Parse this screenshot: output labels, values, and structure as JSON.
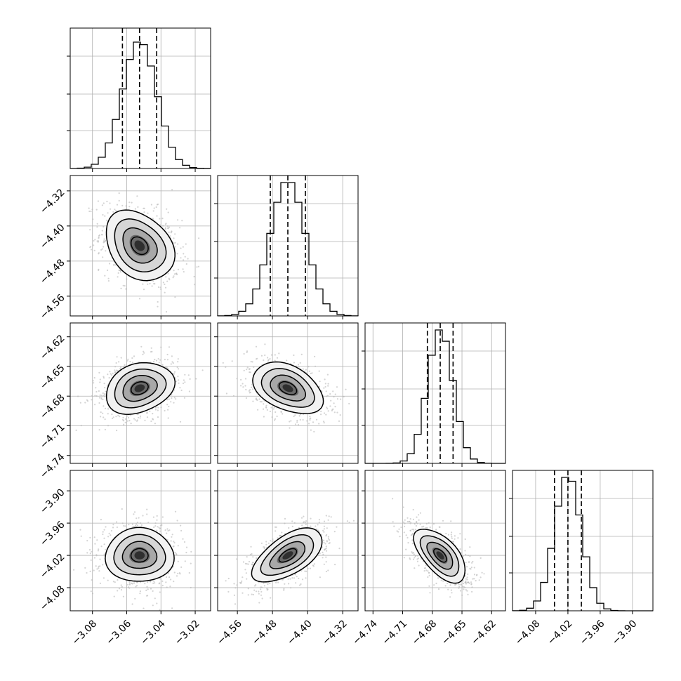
{
  "chart_data": {
    "type": "corner",
    "grid": true,
    "parameters": [
      {
        "range": [
          -3.093,
          -3.011
        ],
        "ticks": [
          -3.08,
          -3.06,
          -3.04,
          -3.02
        ],
        "tick_labels": [
          "−3.08",
          "−3.06",
          "−3.04",
          "−3.02"
        ],
        "mean": -3.0525,
        "sd": 0.01,
        "quantiles": [
          -3.0625,
          -3.0525,
          -3.0425
        ],
        "hist_peak": 0.9
      },
      {
        "range": [
          -4.605,
          -4.285
        ],
        "ticks": [
          -4.56,
          -4.48,
          -4.4,
          -4.32
        ],
        "tick_labels": [
          "−4.56",
          "−4.48",
          "−4.40",
          "−4.32"
        ],
        "mean": -4.445,
        "sd": 0.04,
        "quantiles": [
          -4.485,
          -4.445,
          -4.405
        ],
        "hist_peak": 0.95
      },
      {
        "range": [
          -4.748,
          -4.606
        ],
        "ticks": [
          -4.74,
          -4.71,
          -4.68,
          -4.65,
          -4.62
        ],
        "tick_labels": [
          "−4.74",
          "−4.71",
          "−4.68",
          "−4.65",
          "−4.62"
        ],
        "mean": -4.672,
        "sd": 0.013,
        "quantiles": [
          -4.685,
          -4.672,
          -4.659
        ],
        "hist_peak": 0.95
      },
      {
        "range": [
          -4.123,
          -3.862
        ],
        "ticks": [
          -4.08,
          -4.02,
          -3.96,
          -3.9
        ],
        "tick_labels": [
          "−4.08",
          "−4.02",
          "−3.96",
          "−3.90"
        ],
        "mean": -4.02,
        "sd": 0.025,
        "quantiles": [
          -4.045,
          -4.02,
          -3.995
        ],
        "hist_peak": 0.95
      }
    ],
    "correlations": [
      [
        1.0,
        -0.3,
        0.25,
        0.0
      ],
      [
        -0.3,
        1.0,
        -0.4,
        0.6
      ],
      [
        0.25,
        -0.4,
        1.0,
        -0.6
      ],
      [
        0.0,
        0.6,
        -0.6,
        1.0
      ]
    ]
  }
}
